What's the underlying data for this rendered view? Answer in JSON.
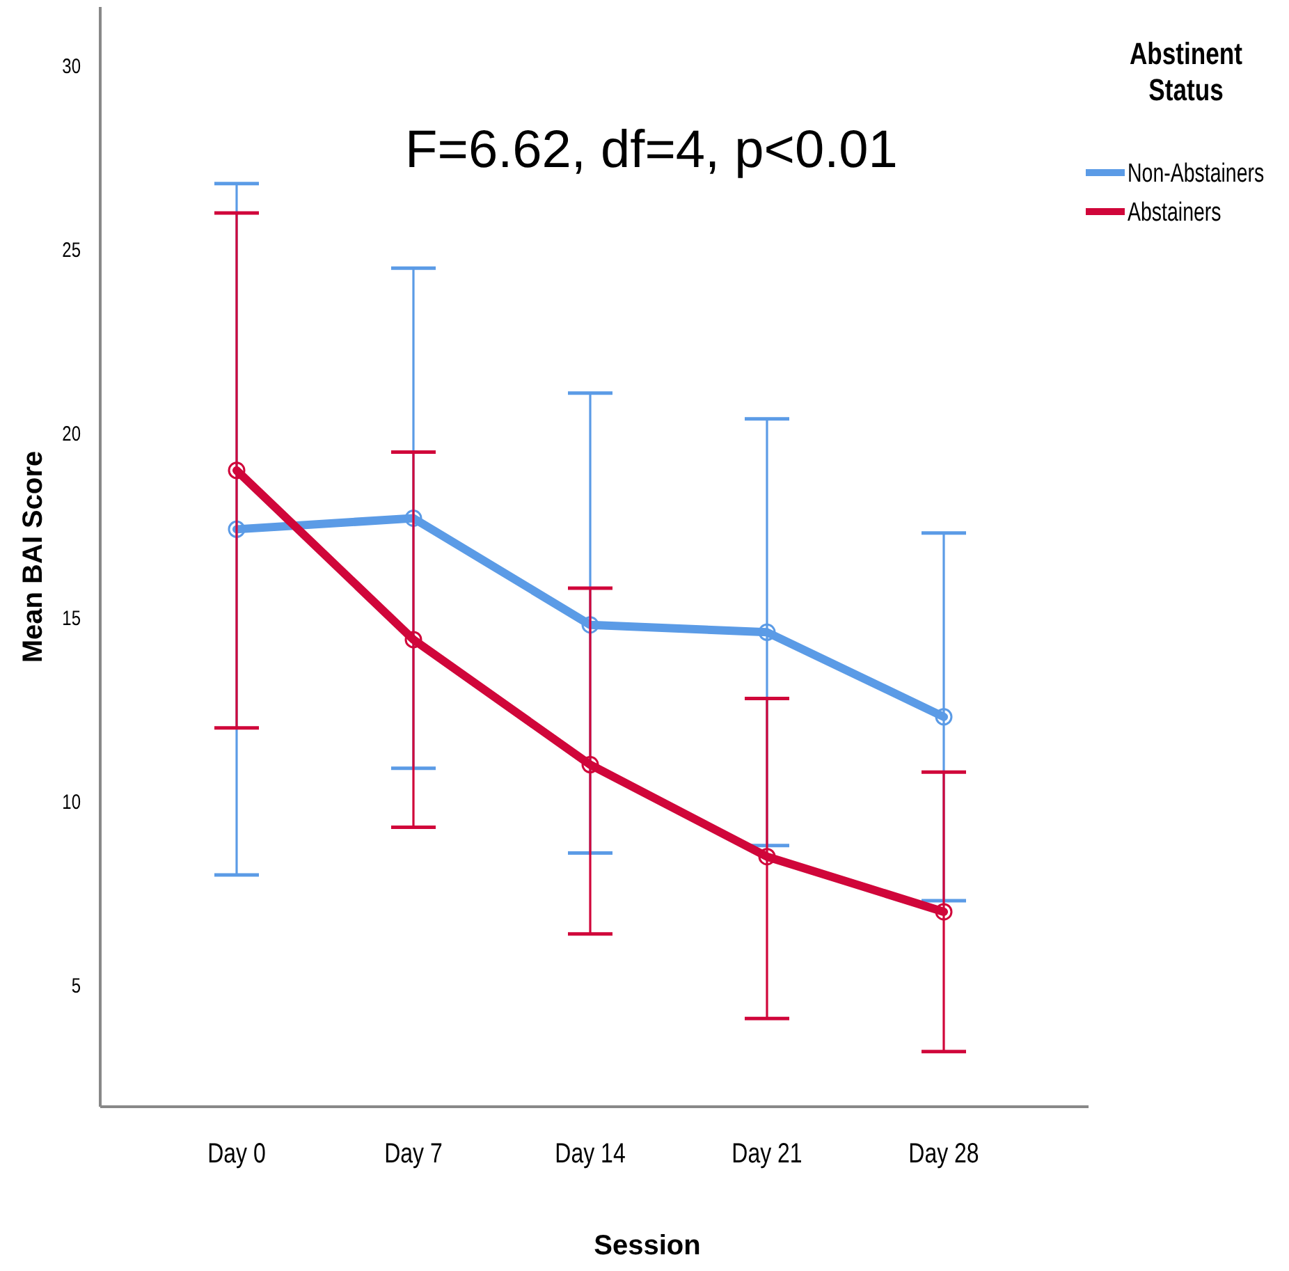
{
  "chart_data": {
    "type": "line",
    "xlabel": "Session",
    "ylabel": "Mean BAI Score",
    "legend_title": "Abstinent Status",
    "categories": [
      "Day 0",
      "Day 7",
      "Day 14",
      "Day 21",
      "Day 28"
    ],
    "ylim": [
      1.7,
      31.6
    ],
    "yticks": [
      5,
      10,
      15,
      20,
      25,
      30
    ],
    "grid": false,
    "legend": "top right",
    "marker": "circle",
    "line_style": "solid",
    "annotations": [
      "F=6.62, df=4, p<0.01"
    ],
    "series": [
      {
        "name": "Non-Abstainers",
        "color": "#5b9be6",
        "values": [
          17.4,
          17.7,
          14.8,
          14.6,
          12.3
        ],
        "errors": [
          [
            8.0,
            26.8
          ],
          [
            10.9,
            24.5
          ],
          [
            8.6,
            21.1
          ],
          [
            8.8,
            20.4
          ],
          [
            7.3,
            17.3
          ]
        ]
      },
      {
        "name": "Abstainers",
        "color": "#d0063a",
        "values": [
          19.0,
          14.4,
          11.0,
          8.5,
          7.0
        ],
        "errors": [
          [
            12.0,
            26.0
          ],
          [
            9.3,
            19.5
          ],
          [
            6.4,
            15.8
          ],
          [
            4.1,
            12.8
          ],
          [
            3.2,
            10.8
          ]
        ]
      }
    ]
  }
}
